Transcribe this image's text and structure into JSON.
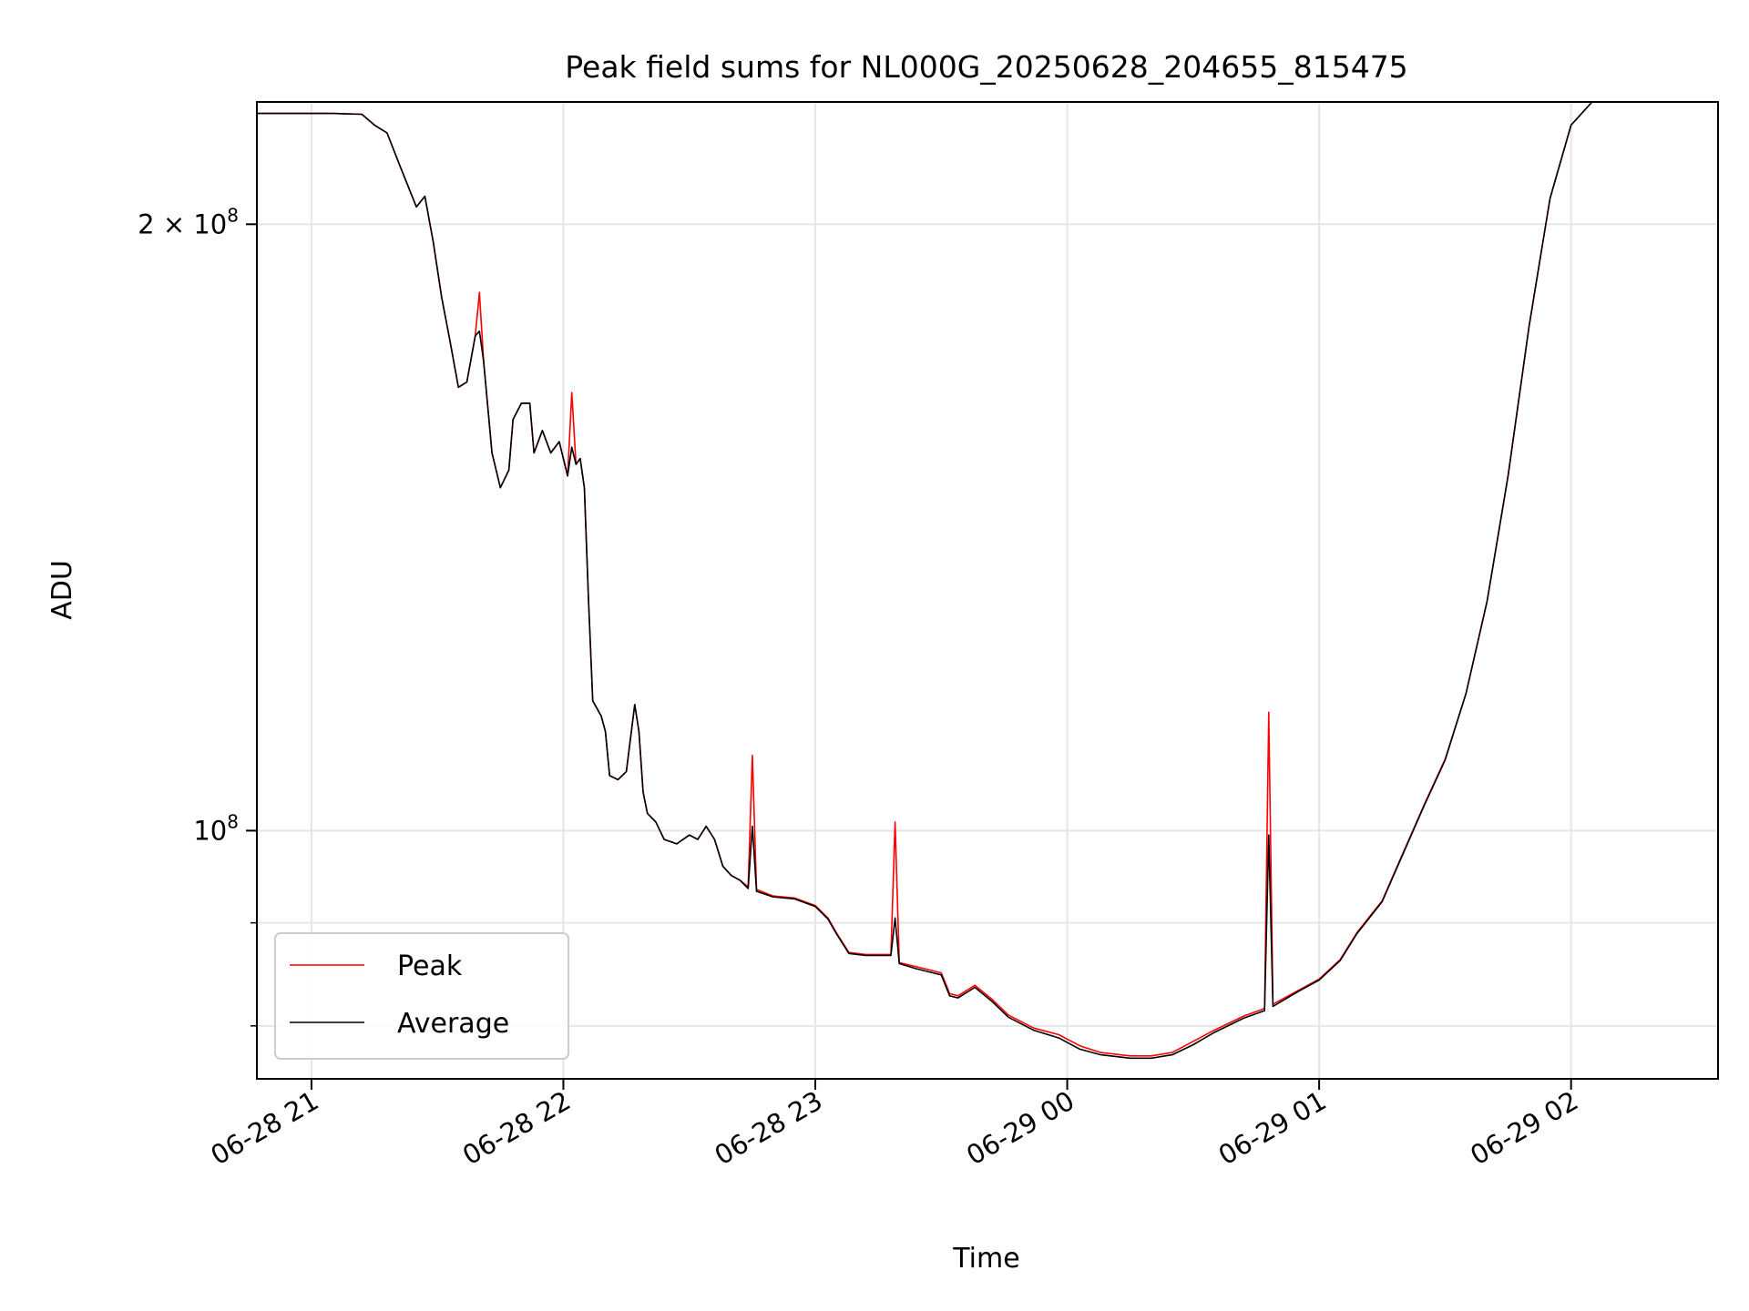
{
  "chart_data": {
    "type": "line",
    "title": "Peak field sums for NL000G_20250628_204655_815475",
    "xlabel": "Time",
    "ylabel": "ADU",
    "y_scale": "log",
    "grid": true,
    "legend_position": "lower-left",
    "xlim": [
      "2025-06-28 20:47",
      "2025-06-29 02:35"
    ],
    "ylim": [
      75300000,
      230000000
    ],
    "x_ticks": [
      {
        "value": "2025-06-28 21:00",
        "label": "06-28 21"
      },
      {
        "value": "2025-06-28 22:00",
        "label": "06-28 22"
      },
      {
        "value": "2025-06-28 23:00",
        "label": "06-28 23"
      },
      {
        "value": "2025-06-29 00:00",
        "label": "06-29 00"
      },
      {
        "value": "2025-06-29 01:00",
        "label": "06-29 01"
      },
      {
        "value": "2025-06-29 02:00",
        "label": "06-29 02"
      }
    ],
    "y_major_ticks": [
      {
        "value": 100000000,
        "base": "10",
        "exp": "8",
        "prefix": ""
      },
      {
        "value": 200000000,
        "base": "10",
        "exp": "8",
        "prefix": "2 × "
      }
    ],
    "y_minor_ticks": [
      80000000,
      90000000
    ],
    "series": [
      {
        "name": "Peak",
        "color": "#ff0000",
        "points": [
          [
            "2025-06-28 20:47",
            227000000
          ],
          [
            "2025-06-28 21:05",
            227000000
          ],
          [
            "2025-06-28 21:12",
            226800000
          ],
          [
            "2025-06-28 21:15",
            224000000
          ],
          [
            "2025-06-28 21:18",
            222000000
          ],
          [
            "2025-06-28 21:21",
            214000000
          ],
          [
            "2025-06-28 21:25",
            204000000
          ],
          [
            "2025-06-28 21:27",
            206500000
          ],
          [
            "2025-06-28 21:29",
            196000000
          ],
          [
            "2025-06-28 21:31",
            184000000
          ],
          [
            "2025-06-28 21:33",
            175000000
          ],
          [
            "2025-06-28 21:35",
            166000000
          ],
          [
            "2025-06-28 21:37",
            167000000
          ],
          [
            "2025-06-28 21:39",
            176000000
          ],
          [
            "2025-06-28 21:40",
            185000000
          ],
          [
            "2025-06-28 21:41",
            171000000
          ],
          [
            "2025-06-28 21:43",
            154000000
          ],
          [
            "2025-06-28 21:45",
            148000000
          ],
          [
            "2025-06-28 21:47",
            151000000
          ],
          [
            "2025-06-28 21:48",
            160000000
          ],
          [
            "2025-06-28 21:50",
            163000000
          ],
          [
            "2025-06-28 21:52",
            163000000
          ],
          [
            "2025-06-28 21:53",
            154000000
          ],
          [
            "2025-06-28 21:55",
            158000000
          ],
          [
            "2025-06-28 21:57",
            154000000
          ],
          [
            "2025-06-28 21:59",
            156000000
          ],
          [
            "2025-06-28 22:01",
            150000000
          ],
          [
            "2025-06-28 22:02",
            165000000
          ],
          [
            "2025-06-28 22:03",
            152000000
          ],
          [
            "2025-06-28 22:04",
            153000000
          ],
          [
            "2025-06-28 22:05",
            148000000
          ],
          [
            "2025-06-28 22:06",
            130000000
          ],
          [
            "2025-06-28 22:07",
            116000000
          ],
          [
            "2025-06-28 22:09",
            114000000
          ],
          [
            "2025-06-28 22:10",
            112000000
          ],
          [
            "2025-06-28 22:11",
            106500000
          ],
          [
            "2025-06-28 22:13",
            106000000
          ],
          [
            "2025-06-28 22:15",
            107000000
          ],
          [
            "2025-06-28 22:17",
            115500000
          ],
          [
            "2025-06-28 22:18",
            112000000
          ],
          [
            "2025-06-28 22:19",
            104500000
          ],
          [
            "2025-06-28 22:20",
            102000000
          ],
          [
            "2025-06-28 22:22",
            101000000
          ],
          [
            "2025-06-28 22:24",
            99000000
          ],
          [
            "2025-06-28 22:27",
            98500000
          ],
          [
            "2025-06-28 22:30",
            99500000
          ],
          [
            "2025-06-28 22:32",
            99000000
          ],
          [
            "2025-06-28 22:34",
            100500000
          ],
          [
            "2025-06-28 22:36",
            99000000
          ],
          [
            "2025-06-28 22:38",
            96000000
          ],
          [
            "2025-06-28 22:40",
            95000000
          ],
          [
            "2025-06-28 22:42",
            94500000
          ],
          [
            "2025-06-28 22:44",
            93800000
          ],
          [
            "2025-06-28 22:45",
            109000000
          ],
          [
            "2025-06-28 22:46",
            93500000
          ],
          [
            "2025-06-28 22:50",
            92800000
          ],
          [
            "2025-06-28 22:55",
            92600000
          ],
          [
            "2025-06-28 23:00",
            91800000
          ],
          [
            "2025-06-28 23:03",
            90500000
          ],
          [
            "2025-06-28 23:05",
            89000000
          ],
          [
            "2025-06-28 23:08",
            87000000
          ],
          [
            "2025-06-28 23:12",
            86800000
          ],
          [
            "2025-06-28 23:18",
            86800000
          ],
          [
            "2025-06-28 23:19",
            101000000
          ],
          [
            "2025-06-28 23:20",
            86000000
          ],
          [
            "2025-06-28 23:24",
            85600000
          ],
          [
            "2025-06-28 23:30",
            85000000
          ],
          [
            "2025-06-28 23:32",
            83000000
          ],
          [
            "2025-06-28 23:34",
            82800000
          ],
          [
            "2025-06-28 23:38",
            83800000
          ],
          [
            "2025-06-28 23:42",
            82500000
          ],
          [
            "2025-06-28 23:46",
            81000000
          ],
          [
            "2025-06-28 23:52",
            79800000
          ],
          [
            "2025-06-28 23:58",
            79200000
          ],
          [
            "2025-06-29 00:03",
            78200000
          ],
          [
            "2025-06-29 00:08",
            77600000
          ],
          [
            "2025-06-29 00:15",
            77300000
          ],
          [
            "2025-06-29 00:20",
            77300000
          ],
          [
            "2025-06-29 00:25",
            77600000
          ],
          [
            "2025-06-29 00:30",
            78600000
          ],
          [
            "2025-06-29 00:35",
            79600000
          ],
          [
            "2025-06-29 00:42",
            80900000
          ],
          [
            "2025-06-29 00:47",
            81600000
          ],
          [
            "2025-06-29 00:48",
            114500000
          ],
          [
            "2025-06-29 00:49",
            82000000
          ],
          [
            "2025-06-29 00:55",
            83300000
          ],
          [
            "2025-06-29 01:00",
            84400000
          ],
          [
            "2025-06-29 01:05",
            86300000
          ],
          [
            "2025-06-29 01:09",
            89000000
          ],
          [
            "2025-06-29 01:15",
            92300000
          ],
          [
            "2025-06-29 01:20",
            97500000
          ],
          [
            "2025-06-29 01:25",
            103000000
          ],
          [
            "2025-06-29 01:30",
            108500000
          ],
          [
            "2025-06-29 01:35",
            117000000
          ],
          [
            "2025-06-29 01:40",
            130000000
          ],
          [
            "2025-06-29 01:45",
            150000000
          ],
          [
            "2025-06-29 01:50",
            178000000
          ],
          [
            "2025-06-29 01:55",
            206000000
          ],
          [
            "2025-06-29 02:00",
            224000000
          ],
          [
            "2025-06-29 02:05",
            230000000
          ],
          [
            "2025-06-29 02:35",
            230000000
          ]
        ]
      },
      {
        "name": "Average",
        "color": "#000000",
        "points": [
          [
            "2025-06-28 20:47",
            227000000
          ],
          [
            "2025-06-28 21:05",
            227000000
          ],
          [
            "2025-06-28 21:12",
            226800000
          ],
          [
            "2025-06-28 21:15",
            224000000
          ],
          [
            "2025-06-28 21:18",
            222000000
          ],
          [
            "2025-06-28 21:21",
            214000000
          ],
          [
            "2025-06-28 21:25",
            204000000
          ],
          [
            "2025-06-28 21:27",
            206500000
          ],
          [
            "2025-06-28 21:29",
            196000000
          ],
          [
            "2025-06-28 21:31",
            184000000
          ],
          [
            "2025-06-28 21:33",
            175000000
          ],
          [
            "2025-06-28 21:35",
            166000000
          ],
          [
            "2025-06-28 21:37",
            167000000
          ],
          [
            "2025-06-28 21:39",
            176000000
          ],
          [
            "2025-06-28 21:40",
            177000000
          ],
          [
            "2025-06-28 21:41",
            171000000
          ],
          [
            "2025-06-28 21:43",
            154000000
          ],
          [
            "2025-06-28 21:45",
            148000000
          ],
          [
            "2025-06-28 21:47",
            151000000
          ],
          [
            "2025-06-28 21:48",
            160000000
          ],
          [
            "2025-06-28 21:50",
            163000000
          ],
          [
            "2025-06-28 21:52",
            163000000
          ],
          [
            "2025-06-28 21:53",
            154000000
          ],
          [
            "2025-06-28 21:55",
            158000000
          ],
          [
            "2025-06-28 21:57",
            154000000
          ],
          [
            "2025-06-28 21:59",
            156000000
          ],
          [
            "2025-06-28 22:01",
            150000000
          ],
          [
            "2025-06-28 22:02",
            155000000
          ],
          [
            "2025-06-28 22:03",
            152000000
          ],
          [
            "2025-06-28 22:04",
            153000000
          ],
          [
            "2025-06-28 22:05",
            148000000
          ],
          [
            "2025-06-28 22:06",
            130000000
          ],
          [
            "2025-06-28 22:07",
            116000000
          ],
          [
            "2025-06-28 22:09",
            114000000
          ],
          [
            "2025-06-28 22:10",
            112000000
          ],
          [
            "2025-06-28 22:11",
            106500000
          ],
          [
            "2025-06-28 22:13",
            106000000
          ],
          [
            "2025-06-28 22:15",
            107000000
          ],
          [
            "2025-06-28 22:17",
            115500000
          ],
          [
            "2025-06-28 22:18",
            112000000
          ],
          [
            "2025-06-28 22:19",
            104500000
          ],
          [
            "2025-06-28 22:20",
            102000000
          ],
          [
            "2025-06-28 22:22",
            101000000
          ],
          [
            "2025-06-28 22:24",
            99000000
          ],
          [
            "2025-06-28 22:27",
            98500000
          ],
          [
            "2025-06-28 22:30",
            99500000
          ],
          [
            "2025-06-28 22:32",
            99000000
          ],
          [
            "2025-06-28 22:34",
            100500000
          ],
          [
            "2025-06-28 22:36",
            99000000
          ],
          [
            "2025-06-28 22:38",
            96000000
          ],
          [
            "2025-06-28 22:40",
            95000000
          ],
          [
            "2025-06-28 22:42",
            94500000
          ],
          [
            "2025-06-28 22:44",
            93600000
          ],
          [
            "2025-06-28 22:45",
            100500000
          ],
          [
            "2025-06-28 22:46",
            93300000
          ],
          [
            "2025-06-28 22:50",
            92700000
          ],
          [
            "2025-06-28 22:55",
            92500000
          ],
          [
            "2025-06-28 23:00",
            91700000
          ],
          [
            "2025-06-28 23:03",
            90400000
          ],
          [
            "2025-06-28 23:05",
            88900000
          ],
          [
            "2025-06-28 23:08",
            86900000
          ],
          [
            "2025-06-28 23:12",
            86700000
          ],
          [
            "2025-06-28 23:18",
            86700000
          ],
          [
            "2025-06-28 23:19",
            90500000
          ],
          [
            "2025-06-28 23:20",
            85900000
          ],
          [
            "2025-06-28 23:24",
            85400000
          ],
          [
            "2025-06-28 23:30",
            84800000
          ],
          [
            "2025-06-28 23:32",
            82800000
          ],
          [
            "2025-06-28 23:34",
            82600000
          ],
          [
            "2025-06-28 23:38",
            83600000
          ],
          [
            "2025-06-28 23:42",
            82300000
          ],
          [
            "2025-06-28 23:46",
            80800000
          ],
          [
            "2025-06-28 23:52",
            79600000
          ],
          [
            "2025-06-28 23:58",
            78900000
          ],
          [
            "2025-06-29 00:03",
            77900000
          ],
          [
            "2025-06-29 00:08",
            77400000
          ],
          [
            "2025-06-29 00:15",
            77100000
          ],
          [
            "2025-06-29 00:20",
            77100000
          ],
          [
            "2025-06-29 00:25",
            77400000
          ],
          [
            "2025-06-29 00:30",
            78300000
          ],
          [
            "2025-06-29 00:35",
            79400000
          ],
          [
            "2025-06-29 00:42",
            80700000
          ],
          [
            "2025-06-29 00:47",
            81400000
          ],
          [
            "2025-06-29 00:48",
            99500000
          ],
          [
            "2025-06-29 00:49",
            81800000
          ],
          [
            "2025-06-29 00:55",
            83200000
          ],
          [
            "2025-06-29 01:00",
            84300000
          ],
          [
            "2025-06-29 01:05",
            86200000
          ],
          [
            "2025-06-29 01:09",
            88900000
          ],
          [
            "2025-06-29 01:15",
            92200000
          ],
          [
            "2025-06-29 01:20",
            97400000
          ],
          [
            "2025-06-29 01:25",
            102900000
          ],
          [
            "2025-06-29 01:30",
            108400000
          ],
          [
            "2025-06-29 01:35",
            117000000
          ],
          [
            "2025-06-29 01:40",
            130000000
          ],
          [
            "2025-06-29 01:45",
            150000000
          ],
          [
            "2025-06-29 01:50",
            178000000
          ],
          [
            "2025-06-29 01:55",
            206000000
          ],
          [
            "2025-06-29 02:00",
            224000000
          ],
          [
            "2025-06-29 02:05",
            230000000
          ],
          [
            "2025-06-29 02:35",
            230000000
          ]
        ]
      }
    ]
  }
}
